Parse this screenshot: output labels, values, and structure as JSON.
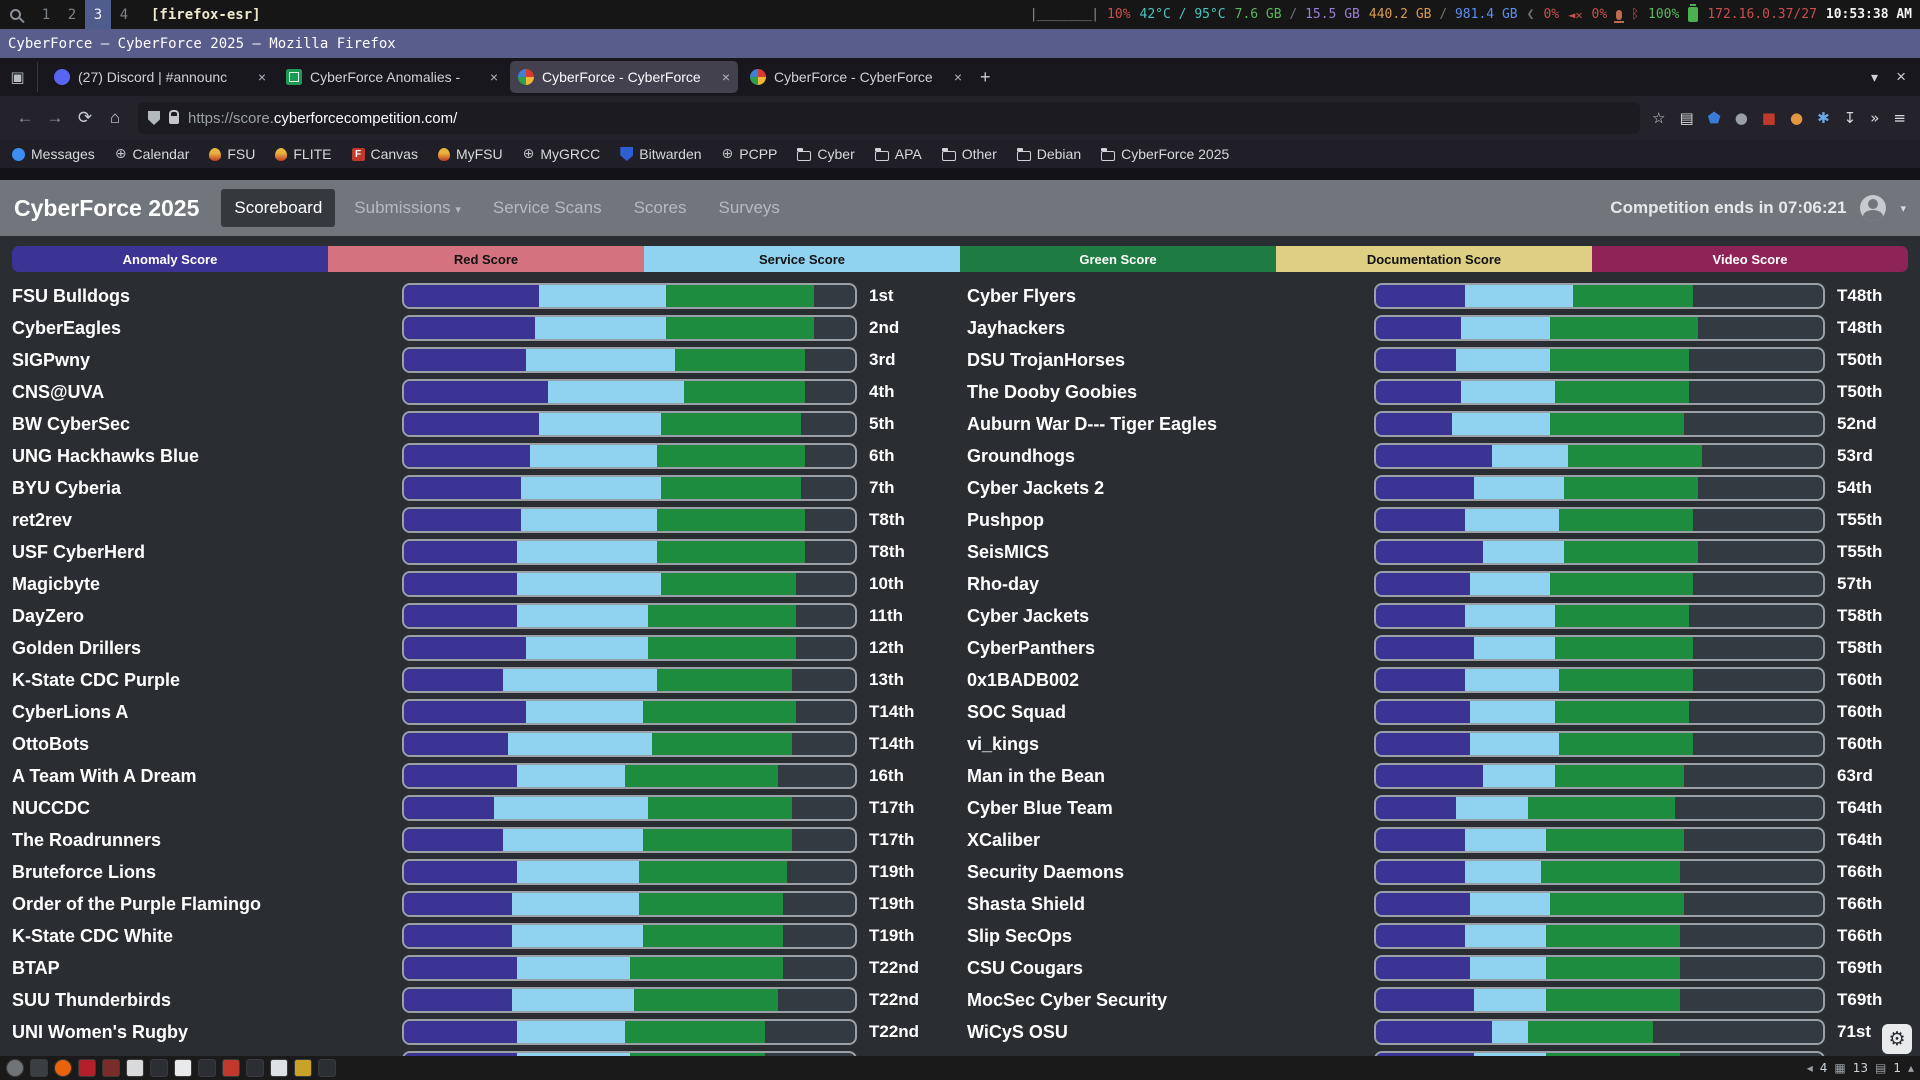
{
  "system_bar": {
    "workspaces": [
      "1",
      "2",
      "3",
      "4"
    ],
    "active_workspace": "3",
    "window_class": "[firefox-esr]",
    "cpu_graph": "|________|",
    "cpu_pct": "10%",
    "temperature": "42°C / 95°C",
    "memory_used": "7.6 GB",
    "memory_total": "15.5 GB",
    "disk_used": "440.2 GB",
    "disk_total": "981.4 GB",
    "volume_pct": "0%",
    "mic_pct": "0%",
    "bluetooth_glyph": "ᛒ",
    "battery_pct": "100%",
    "ip_address": "172.16.0.37/27",
    "clock": "10:53:38 AM"
  },
  "titlebar": {
    "text": "CyberForce — CyberForce 2025 — Mozilla Firefox"
  },
  "tabstrip": {
    "firefox_view_glyph": "▣",
    "tabs": [
      {
        "label": "(27) Discord | #announc",
        "icon": "discord",
        "active": false
      },
      {
        "label": "CyberForce Anomalies - ",
        "icon": "sheets",
        "active": false
      },
      {
        "label": "CyberForce - CyberForce",
        "icon": "cyberforce",
        "active": true
      },
      {
        "label": "CyberForce - CyberForce",
        "icon": "cyberforce",
        "active": false
      }
    ],
    "close_glyph": "×",
    "new_tab_glyph": "+",
    "list_tabs_glyph": "▾",
    "close_window_glyph": "×"
  },
  "toolbar": {
    "back_glyph": "←",
    "forward_glyph": "→",
    "reload_glyph": "⟳",
    "home_glyph": "⌂",
    "url_prefix": "https://score.",
    "url_domain": "cyberforcecompetition.com",
    "url_suffix": "/",
    "right_icons": [
      {
        "name": "bookmark-star-icon",
        "glyph": "☆",
        "color": "#d5d8dc"
      },
      {
        "name": "reader-view-icon",
        "glyph": "▤",
        "color": "#d5d8dc"
      },
      {
        "name": "bitwarden-shield-icon",
        "glyph": "⬟",
        "color": "#3a7bd5"
      },
      {
        "name": "extension-monkey-icon",
        "glyph": "●",
        "color": "#9aa0a6"
      },
      {
        "name": "ublock-icon",
        "glyph": "■",
        "color": "#c0392b"
      },
      {
        "name": "container-tab-icon",
        "glyph": "●",
        "color": "#e2973f"
      },
      {
        "name": "extension-gear-icon",
        "glyph": "✱",
        "color": "#6aa7e8"
      },
      {
        "name": "save-page-icon",
        "glyph": "↧",
        "color": "#d5d8dc"
      },
      {
        "name": "overflow-chevrons-icon",
        "glyph": "»",
        "color": "#d5d8dc"
      },
      {
        "name": "menu-icon",
        "glyph": "≡",
        "color": "#d5d8dc"
      }
    ]
  },
  "bookmarks": [
    {
      "label": "Messages",
      "icon": "dot",
      "color": "#3d8ef0"
    },
    {
      "label": "Calendar",
      "icon": "globe"
    },
    {
      "label": "FSU",
      "icon": "flame"
    },
    {
      "label": "FLITE",
      "icon": "flame"
    },
    {
      "label": "Canvas",
      "icon": "canvas",
      "letter": "F"
    },
    {
      "label": "MyFSU",
      "icon": "flame"
    },
    {
      "label": "MyGRCC",
      "icon": "globe"
    },
    {
      "label": "Bitwarden",
      "icon": "shield"
    },
    {
      "label": "PCPP",
      "icon": "globe"
    },
    {
      "label": "Cyber",
      "icon": "folder"
    },
    {
      "label": "APA",
      "icon": "folder"
    },
    {
      "label": "Other",
      "icon": "folder"
    },
    {
      "label": "Debian",
      "icon": "folder"
    },
    {
      "label": "CyberForce 2025",
      "icon": "folder"
    }
  ],
  "sitenav": {
    "brand": "CyberForce 2025",
    "items": [
      {
        "label": "Scoreboard",
        "active": true,
        "caret": false
      },
      {
        "label": "Submissions",
        "active": false,
        "caret": true
      },
      {
        "label": "Service Scans",
        "active": false,
        "caret": false
      },
      {
        "label": "Scores",
        "active": false,
        "caret": false
      },
      {
        "label": "Surveys",
        "active": false,
        "caret": false
      }
    ],
    "caret_glyph": "▾",
    "countdown": "Competition ends in 07:06:21"
  },
  "legend": [
    {
      "label": "Anomaly Score",
      "color": "#3b3494",
      "text_color": "#ffffff"
    },
    {
      "label": "Red Score",
      "color": "#d4737f",
      "text_color": "#111111"
    },
    {
      "label": "Service Score",
      "color": "#8fd3f0",
      "text_color": "#111111"
    },
    {
      "label": "Green Score",
      "color": "#1e7b41",
      "text_color": "#ffffff"
    },
    {
      "label": "Documentation Score",
      "color": "#ddd083",
      "text_color": "#111111"
    },
    {
      "label": "Video Score",
      "color": "#8e2456",
      "text_color": "#ffffff"
    }
  ],
  "chart_data": {
    "type": "bar",
    "subtype": "horizontal-stacked",
    "series_legend": [
      "Anomaly Score",
      "Red Score",
      "Service Score",
      "Green Score",
      "Documentation Score",
      "Video Score"
    ],
    "bar_segment_series": [
      "Anomaly Score",
      "Service Score",
      "Green Score"
    ],
    "segment_colors": {
      "anomaly": "#3b3494",
      "service": "#8fd3f0",
      "green": "#1e8c3e"
    },
    "units": "percent of bar width (estimated from pixels)",
    "left_column": [
      {
        "team": "FSU Bulldogs",
        "rank": "1st",
        "segments": [
          30,
          28,
          33
        ]
      },
      {
        "team": "CyberEagles",
        "rank": "2nd",
        "segments": [
          29,
          29,
          33
        ]
      },
      {
        "team": "SIGPwny",
        "rank": "3rd",
        "segments": [
          27,
          33,
          29
        ]
      },
      {
        "team": "CNS@UVA",
        "rank": "4th",
        "segments": [
          32,
          30,
          27
        ]
      },
      {
        "team": "BW CyberSec",
        "rank": "5th",
        "segments": [
          30,
          27,
          31
        ]
      },
      {
        "team": "UNG Hackhawks Blue",
        "rank": "6th",
        "segments": [
          28,
          28,
          33
        ]
      },
      {
        "team": "BYU Cyberia",
        "rank": "7th",
        "segments": [
          26,
          31,
          31
        ]
      },
      {
        "team": "ret2rev",
        "rank": "T8th",
        "segments": [
          26,
          30,
          33
        ]
      },
      {
        "team": "USF CyberHerd",
        "rank": "T8th",
        "segments": [
          25,
          31,
          33
        ]
      },
      {
        "team": "Magicbyte",
        "rank": "10th",
        "segments": [
          25,
          32,
          30
        ]
      },
      {
        "team": "DayZero",
        "rank": "11th",
        "segments": [
          25,
          29,
          33
        ]
      },
      {
        "team": "Golden Drillers",
        "rank": "12th",
        "segments": [
          27,
          27,
          33
        ]
      },
      {
        "team": "K-State CDC Purple",
        "rank": "13th",
        "segments": [
          22,
          34,
          30
        ]
      },
      {
        "team": "CyberLions A",
        "rank": "T14th",
        "segments": [
          27,
          26,
          34
        ]
      },
      {
        "team": "OttoBots",
        "rank": "T14th",
        "segments": [
          23,
          32,
          31
        ]
      },
      {
        "team": "A Team With A Dream",
        "rank": "16th",
        "segments": [
          25,
          24,
          34
        ]
      },
      {
        "team": "NUCCDC",
        "rank": "T17th",
        "segments": [
          20,
          34,
          32
        ]
      },
      {
        "team": "The Roadrunners",
        "rank": "T17th",
        "segments": [
          22,
          31,
          33
        ]
      },
      {
        "team": "Bruteforce Lions",
        "rank": "T19th",
        "segments": [
          25,
          27,
          33
        ]
      },
      {
        "team": "Order of the Purple Flamingo",
        "rank": "T19th",
        "segments": [
          24,
          28,
          32
        ]
      },
      {
        "team": "K-State CDC White",
        "rank": "T19th",
        "segments": [
          24,
          29,
          31
        ]
      },
      {
        "team": "BTAP",
        "rank": "T22nd",
        "segments": [
          25,
          25,
          34
        ]
      },
      {
        "team": "SUU Thunderbirds",
        "rank": "T22nd",
        "segments": [
          24,
          27,
          32
        ]
      },
      {
        "team": "UNI Women's Rugby",
        "rank": "T22nd",
        "segments": [
          25,
          24,
          31
        ]
      }
    ],
    "right_column": [
      {
        "team": "Cyber Flyers",
        "rank": "T48th",
        "segments": [
          20,
          24,
          27
        ]
      },
      {
        "team": "Jayhackers",
        "rank": "T48th",
        "segments": [
          19,
          20,
          33
        ]
      },
      {
        "team": "DSU TrojanHorses",
        "rank": "T50th",
        "segments": [
          18,
          21,
          31
        ]
      },
      {
        "team": "The Dooby Goobies",
        "rank": "T50th",
        "segments": [
          19,
          21,
          30
        ]
      },
      {
        "team": "Auburn War D--- Tiger Eagles",
        "rank": "52nd",
        "segments": [
          17,
          22,
          30
        ]
      },
      {
        "team": "Groundhogs",
        "rank": "53rd",
        "segments": [
          26,
          17,
          30
        ]
      },
      {
        "team": "Cyber Jackets 2",
        "rank": "54th",
        "segments": [
          22,
          20,
          30
        ]
      },
      {
        "team": "Pushpop",
        "rank": "T55th",
        "segments": [
          20,
          21,
          30
        ]
      },
      {
        "team": "SeisMICS",
        "rank": "T55th",
        "segments": [
          24,
          18,
          30
        ]
      },
      {
        "team": "Rho-day",
        "rank": "57th",
        "segments": [
          21,
          18,
          32
        ]
      },
      {
        "team": "Cyber Jackets",
        "rank": "T58th",
        "segments": [
          20,
          20,
          30
        ]
      },
      {
        "team": "CyberPanthers",
        "rank": "T58th",
        "segments": [
          22,
          18,
          31
        ]
      },
      {
        "team": "0x1BADB002",
        "rank": "T60th",
        "segments": [
          20,
          21,
          30
        ]
      },
      {
        "team": "SOC Squad",
        "rank": "T60th",
        "segments": [
          21,
          19,
          30
        ]
      },
      {
        "team": "vi_kings",
        "rank": "T60th",
        "segments": [
          21,
          20,
          30
        ]
      },
      {
        "team": "Man in the Bean",
        "rank": "63rd",
        "segments": [
          24,
          16,
          29
        ]
      },
      {
        "team": "Cyber Blue Team",
        "rank": "T64th",
        "segments": [
          18,
          16,
          33
        ]
      },
      {
        "team": "XCaliber",
        "rank": "T64th",
        "segments": [
          20,
          18,
          31
        ]
      },
      {
        "team": "Security Daemons",
        "rank": "T66th",
        "segments": [
          20,
          17,
          31
        ]
      },
      {
        "team": "Shasta Shield",
        "rank": "T66th",
        "segments": [
          21,
          18,
          30
        ]
      },
      {
        "team": "Slip SecOps",
        "rank": "T66th",
        "segments": [
          20,
          18,
          30
        ]
      },
      {
        "team": "CSU Cougars",
        "rank": "T69th",
        "segments": [
          21,
          17,
          30
        ]
      },
      {
        "team": "MocSec Cyber Security",
        "rank": "T69th",
        "segments": [
          22,
          16,
          30
        ]
      },
      {
        "team": "WiCyS OSU",
        "rank": "71st",
        "segments": [
          26,
          8,
          28
        ]
      }
    ],
    "partial_row": {
      "left_segments": [
        25,
        25,
        30
      ],
      "right_segments": [
        22,
        16,
        30
      ]
    }
  },
  "gear_button_glyph": "⚙",
  "taskbar": {
    "apps": [
      {
        "name": "screenrec-icon",
        "color": "#6f7479",
        "shape": "round"
      },
      {
        "name": "play-icon",
        "color": "#3a3f44",
        "shape": "square"
      },
      {
        "name": "firefox-icon",
        "color": "#e8630a",
        "shape": "round"
      },
      {
        "name": "pdf-viewer-icon",
        "color": "#b3202c",
        "shape": "square"
      },
      {
        "name": "terminal-red-icon",
        "color": "#7a2b2b",
        "shape": "square"
      },
      {
        "name": "file-manager-icon",
        "color": "#d8dadc",
        "shape": "square"
      },
      {
        "name": "terminal-icon",
        "color": "#2b2f33",
        "shape": "square"
      },
      {
        "name": "text-editor-icon",
        "color": "#e8eaec",
        "shape": "square"
      },
      {
        "name": "terminal2-icon",
        "color": "#2b2f33",
        "shape": "square"
      },
      {
        "name": "app-red-icon",
        "color": "#c0392b",
        "shape": "square"
      },
      {
        "name": "terminal3-icon",
        "color": "#2b2f33",
        "shape": "square"
      },
      {
        "name": "document-icon",
        "color": "#dfe2e5",
        "shape": "square"
      },
      {
        "name": "sheet-yellow-icon",
        "color": "#c9a227",
        "shape": "square"
      },
      {
        "name": "terminal4-icon",
        "color": "#2b2f33",
        "shape": "square"
      }
    ],
    "tray": [
      {
        "type": "glyph",
        "name": "chevron-left-icon",
        "text": "◂"
      },
      {
        "type": "text",
        "name": "tray-count-windows",
        "text": "4"
      },
      {
        "type": "glyph",
        "name": "grid-icon",
        "text": "▦"
      },
      {
        "type": "text",
        "name": "tray-count-files",
        "text": "13"
      },
      {
        "type": "glyph",
        "name": "panel-icon",
        "text": "▤"
      },
      {
        "type": "text",
        "name": "tray-count-notifications",
        "text": "1"
      },
      {
        "type": "glyph",
        "name": "arrow-up-icon",
        "text": "▴"
      }
    ]
  }
}
